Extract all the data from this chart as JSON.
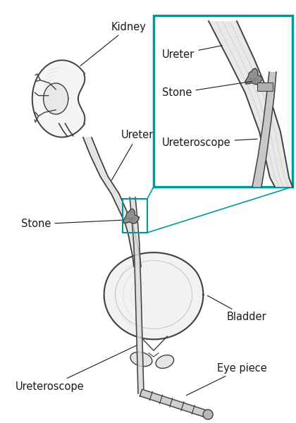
{
  "background_color": "#ffffff",
  "teal_color": "#009999",
  "black": "#1a1a1a",
  "dark_gray": "#404040",
  "mid_gray": "#888888",
  "light_gray": "#cccccc",
  "labels": {
    "kidney": "Kidney",
    "ureter": "Ureter",
    "stone": "Stone",
    "bladder": "Bladder",
    "ureteroscope": "Ureteroscope",
    "eye_piece": "Eye piece",
    "inset_ureter": "Ureter",
    "inset_stone": "Stone",
    "inset_ureteroscope": "Ureteroscope"
  },
  "figsize": [
    4.2,
    6.0
  ],
  "dpi": 100
}
